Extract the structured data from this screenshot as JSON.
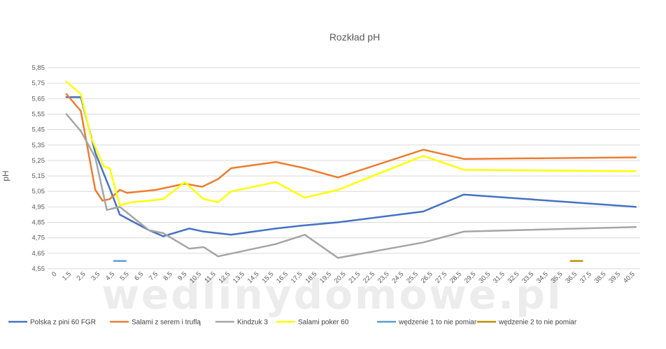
{
  "chart_data": {
    "type": "line",
    "title": "Rozkład pH",
    "ylabel": "pH",
    "xlabel": "",
    "watermark": "wedlinydomowe.pl",
    "ylim": [
      4.55,
      5.85
    ],
    "y_ticks": [
      "4,55",
      "4,65",
      "4,75",
      "4,85",
      "4,95",
      "5,05",
      "5,15",
      "5,25",
      "5,35",
      "5,45",
      "5,55",
      "5,65",
      "5,75",
      "5,85"
    ],
    "x_ticks": [
      "0",
      "1,5",
      "2,5",
      "3,5",
      "4,5",
      "5,5",
      "6,5",
      "7,5",
      "8,5",
      "9,5",
      "10,5",
      "11,5",
      "12,5",
      "13,5",
      "14,5",
      "15,5",
      "16,5",
      "17,5",
      "18,5",
      "19,5",
      "20,5",
      "21,5",
      "22,5",
      "23,5",
      "24,5",
      "25,5",
      "26,5",
      "27,5",
      "28,5",
      "29,5",
      "30,5",
      "31,5",
      "32,5",
      "33,5",
      "34,5",
      "35,5",
      "36,5",
      "37,5",
      "38,5",
      "39,5",
      "40,5"
    ],
    "grid": "horizontal",
    "legend_position": "bottom",
    "series": [
      {
        "name": "Polska z pini 60 FGR",
        "color": "#4472C4",
        "x": [
          0.8,
          1.8,
          2.8,
          3.8,
          4.5,
          6.5,
          7.5,
          9.3,
          10.3,
          12.2,
          15.3,
          17.2,
          19.6,
          25.5,
          28.3,
          40.2
        ],
        "y": [
          5.66,
          5.66,
          5.3,
          5.07,
          4.9,
          4.8,
          4.76,
          4.81,
          4.79,
          4.77,
          4.81,
          4.83,
          4.85,
          4.92,
          5.03,
          4.95
        ]
      },
      {
        "name": "Salami z serem i truflą",
        "color": "#ED7D31",
        "x": [
          0.8,
          1.8,
          2.8,
          3.3,
          3.8,
          4.5,
          5.0,
          7.0,
          9.0,
          10.2,
          11.3,
          12.2,
          15.3,
          17.3,
          19.6,
          25.5,
          28.3,
          40.2
        ],
        "y": [
          5.68,
          5.57,
          5.06,
          4.99,
          5.0,
          5.06,
          5.04,
          5.06,
          5.1,
          5.08,
          5.13,
          5.2,
          5.24,
          5.2,
          5.14,
          5.32,
          5.26,
          5.27
        ]
      },
      {
        "name": "Kindzuk 3",
        "color": "#A5A5A5",
        "x": [
          0.8,
          1.8,
          2.8,
          3.6,
          4.5,
          6.5,
          7.5,
          9.3,
          10.3,
          11.3,
          15.3,
          17.3,
          19.6,
          25.5,
          28.3,
          40.2
        ],
        "y": [
          5.55,
          5.44,
          5.27,
          4.93,
          4.95,
          4.8,
          4.78,
          4.68,
          4.69,
          4.63,
          4.71,
          4.77,
          4.62,
          4.72,
          4.79,
          4.82
        ]
      },
      {
        "name": "Salami poker 60",
        "color": "#FFFF00",
        "x": [
          0.8,
          1.8,
          2.5,
          3.4,
          3.8,
          4.5,
          5.3,
          6.5,
          7.5,
          9.0,
          10.3,
          11.3,
          12.2,
          15.3,
          17.3,
          19.6,
          25.5,
          28.3,
          40.2
        ],
        "y": [
          5.76,
          5.68,
          5.4,
          5.21,
          5.2,
          4.96,
          4.98,
          4.99,
          5.0,
          5.11,
          5.0,
          4.98,
          5.05,
          5.11,
          5.01,
          5.06,
          5.28,
          5.19,
          5.18
        ]
      },
      {
        "name": "wędzenie 1 to nie pomiar",
        "color": "#5B9BD5",
        "x": [
          4.1,
          4.9
        ],
        "y": [
          4.6,
          4.6
        ]
      },
      {
        "name": "wędzenie 2 to nie pomiar",
        "color": "#BF9000",
        "x": [
          35.7,
          36.5
        ],
        "y": [
          4.6,
          4.6
        ]
      }
    ]
  }
}
